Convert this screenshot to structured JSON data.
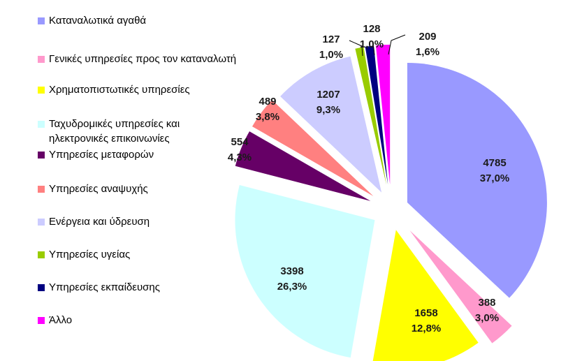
{
  "chart_data": {
    "type": "pie",
    "title": "",
    "legend_position": "left",
    "slices": [
      {
        "name": "Καταναλωτικά αγαθά",
        "value": 4785,
        "percent": "37,0%",
        "color": "#9999ff",
        "exploded": true
      },
      {
        "name": "Γενικές υπηρεσίες προς τον καταναλωτή",
        "value": 388,
        "percent": "3,0%",
        "color": "#ff99cc",
        "exploded": true
      },
      {
        "name": "Χρηματοπιστωτικές υπηρεσίες",
        "value": 1658,
        "percent": "12,8%",
        "color": "#ffff00",
        "exploded": true
      },
      {
        "name": "Ταχυδρομικές υπηρεσίες και ηλεκτρονικές επικοινωνίες",
        "value": 3398,
        "percent": "26,3%",
        "color": "#ccffff",
        "exploded": true
      },
      {
        "name": "Υπηρεσίες μεταφορών",
        "value": 554,
        "percent": "4,3%",
        "color": "#660066",
        "exploded": true
      },
      {
        "name": "Υπηρεσίες αναψυχής",
        "value": 489,
        "percent": "3,8%",
        "color": "#ff8080",
        "exploded": true
      },
      {
        "name": "Ενέργεια και ύδρευση",
        "value": 1207,
        "percent": "9,3%",
        "color": "#ccccff",
        "exploded": true
      },
      {
        "name": "Υπηρεσίες υγείας",
        "value": 127,
        "percent": "1,0%",
        "color": "#99cc00",
        "exploded": true
      },
      {
        "name": "Υπηρεσίες εκπαίδευσης",
        "value": 128,
        "percent": "1,0%",
        "color": "#000080",
        "exploded": true
      },
      {
        "name": "Άλλο",
        "value": 209,
        "percent": "1,6%",
        "color": "#ff00ff",
        "exploded": true
      }
    ]
  }
}
